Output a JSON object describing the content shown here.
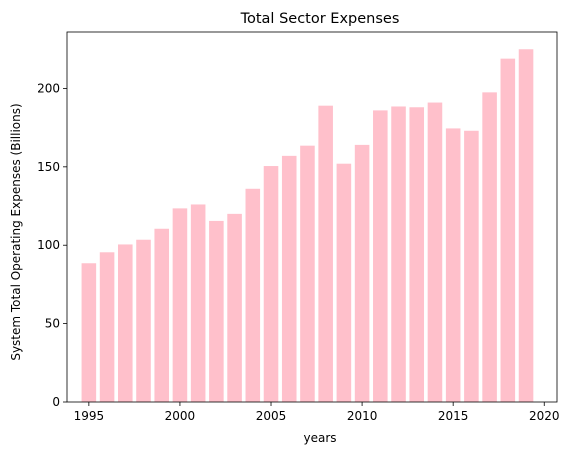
{
  "chart_data": {
    "type": "bar",
    "title": "Total Sector Expenses",
    "xlabel": "years",
    "ylabel": "System Total Operating Expenses (Billions)",
    "x": [
      1995,
      1996,
      1997,
      1998,
      1999,
      2000,
      2001,
      2002,
      2003,
      2004,
      2005,
      2006,
      2007,
      2008,
      2009,
      2010,
      2011,
      2012,
      2013,
      2014,
      2015,
      2016,
      2017,
      2018,
      2019
    ],
    "values": [
      88.5,
      95.5,
      100.5,
      103.5,
      110.5,
      123.5,
      126,
      115.5,
      120,
      136,
      150.5,
      157,
      163.5,
      189,
      152,
      164,
      186,
      188.5,
      188,
      191,
      174.5,
      173,
      197.5,
      219,
      225
    ],
    "xlim": [
      1993.8,
      2020.7
    ],
    "ylim": [
      0,
      236
    ],
    "xticks": [
      1995,
      2000,
      2005,
      2010,
      2015,
      2020
    ],
    "yticks": [
      0,
      50,
      100,
      150,
      200
    ],
    "bar_color": "#ffc0cb",
    "grid": false,
    "legend": "none"
  }
}
